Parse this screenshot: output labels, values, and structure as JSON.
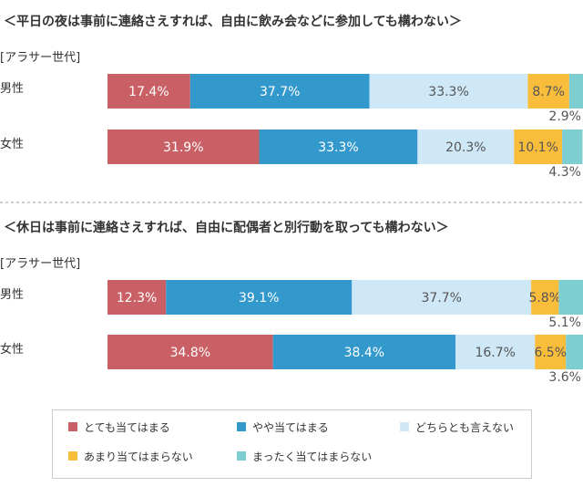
{
  "chart_data": [
    {
      "type": "bar",
      "orientation": "horizontal",
      "stacked": true,
      "title": "＜平日の夜は事前に連絡さえすれば、自由に飲み会などに参加しても構わない＞",
      "subtitle": "[アラサー世代]",
      "categories": [
        "男性",
        "女性"
      ],
      "series": [
        {
          "name": "とても当てはまる",
          "values": [
            17.4,
            31.9
          ]
        },
        {
          "name": "やや当てはまる",
          "values": [
            37.7,
            33.3
          ]
        },
        {
          "name": "どちらとも言えない",
          "values": [
            33.3,
            20.3
          ]
        },
        {
          "name": "あまり当てはまらない",
          "values": [
            8.7,
            10.1
          ]
        },
        {
          "name": "まったく当てはまらない",
          "values": [
            2.9,
            4.3
          ]
        }
      ],
      "xlim": [
        0,
        100
      ]
    },
    {
      "type": "bar",
      "orientation": "horizontal",
      "stacked": true,
      "title": "＜休日は事前に連絡さえすれば、自由に配偶者と別行動を取っても構わない＞",
      "subtitle": "[アラサー世代]",
      "categories": [
        "男性",
        "女性"
      ],
      "series": [
        {
          "name": "とても当てはまる",
          "values": [
            12.3,
            34.8
          ]
        },
        {
          "name": "やや当てはまる",
          "values": [
            39.1,
            38.4
          ]
        },
        {
          "name": "どちらとも言えない",
          "values": [
            37.7,
            16.7
          ]
        },
        {
          "name": "あまり当てはまらない",
          "values": [
            5.8,
            6.5
          ]
        },
        {
          "name": "まったく当てはまらない",
          "values": [
            5.1,
            3.6
          ]
        }
      ],
      "xlim": [
        0,
        100
      ]
    }
  ],
  "legend": {
    "placement": "bottom",
    "items": [
      {
        "label": "とても当てはまる",
        "color": "#c96065"
      },
      {
        "label": "やや当てはまる",
        "color": "#3399cc"
      },
      {
        "label": "どちらとも言えない",
        "color": "#cfe8f7"
      },
      {
        "label": "あまり当てはまらない",
        "color": "#f9bd3c"
      },
      {
        "label": "まったく当てはまらない",
        "color": "#7cced0"
      }
    ]
  },
  "label_colors": [
    "#ffffff",
    "#ffffff",
    "#555555",
    "#555555",
    "#555555"
  ]
}
